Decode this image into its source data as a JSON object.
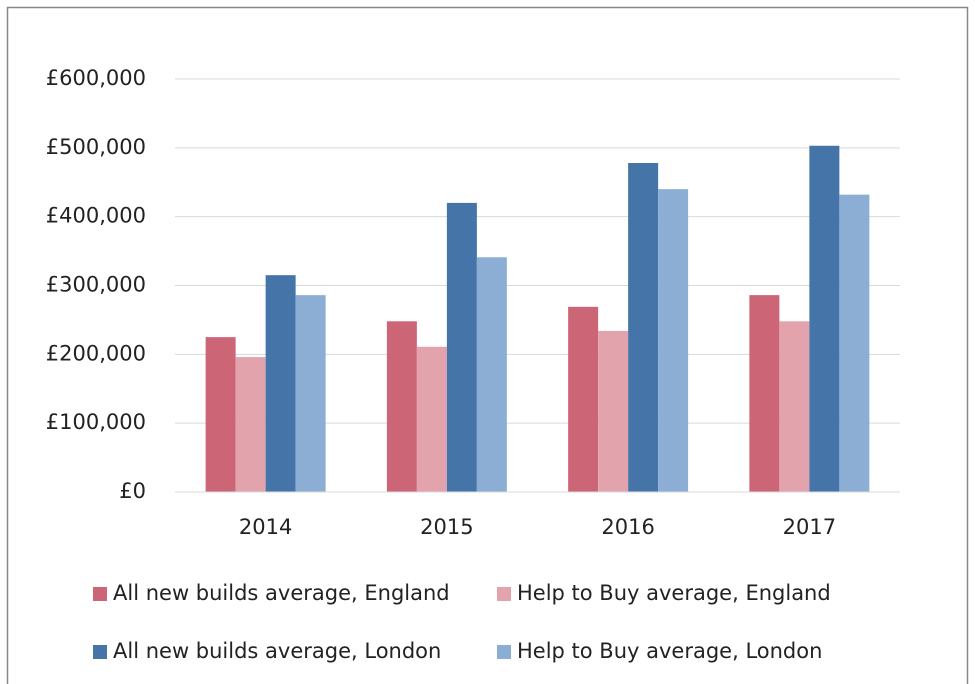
{
  "chart_data": {
    "type": "bar",
    "categories": [
      "2014",
      "2015",
      "2016",
      "2017"
    ],
    "series": [
      {
        "name": "All new builds average, England",
        "color": "#cc6677",
        "values": [
          225000,
          248000,
          269000,
          286000
        ]
      },
      {
        "name": "Help to Buy average, England",
        "color": "#e3a3ad",
        "values": [
          196000,
          211000,
          234000,
          248000
        ]
      },
      {
        "name": "All new builds average, London",
        "color": "#4575a8",
        "values": [
          315000,
          420000,
          478000,
          503000
        ]
      },
      {
        "name": "Help to Buy average, London",
        "color": "#8caed4",
        "values": [
          286000,
          341000,
          440000,
          432000
        ]
      }
    ],
    "ylim": [
      0,
      600000
    ],
    "yticks": [
      {
        "value": 0,
        "label": "£0"
      },
      {
        "value": 100000,
        "label": "£100,000"
      },
      {
        "value": 200000,
        "label": "£200,000"
      },
      {
        "value": 300000,
        "label": "£300,000"
      },
      {
        "value": 400000,
        "label": "£400,000"
      },
      {
        "value": 500000,
        "label": "£500,000"
      },
      {
        "value": 600000,
        "label": "£600,000"
      }
    ],
    "grid": true,
    "legend": "bottom"
  }
}
